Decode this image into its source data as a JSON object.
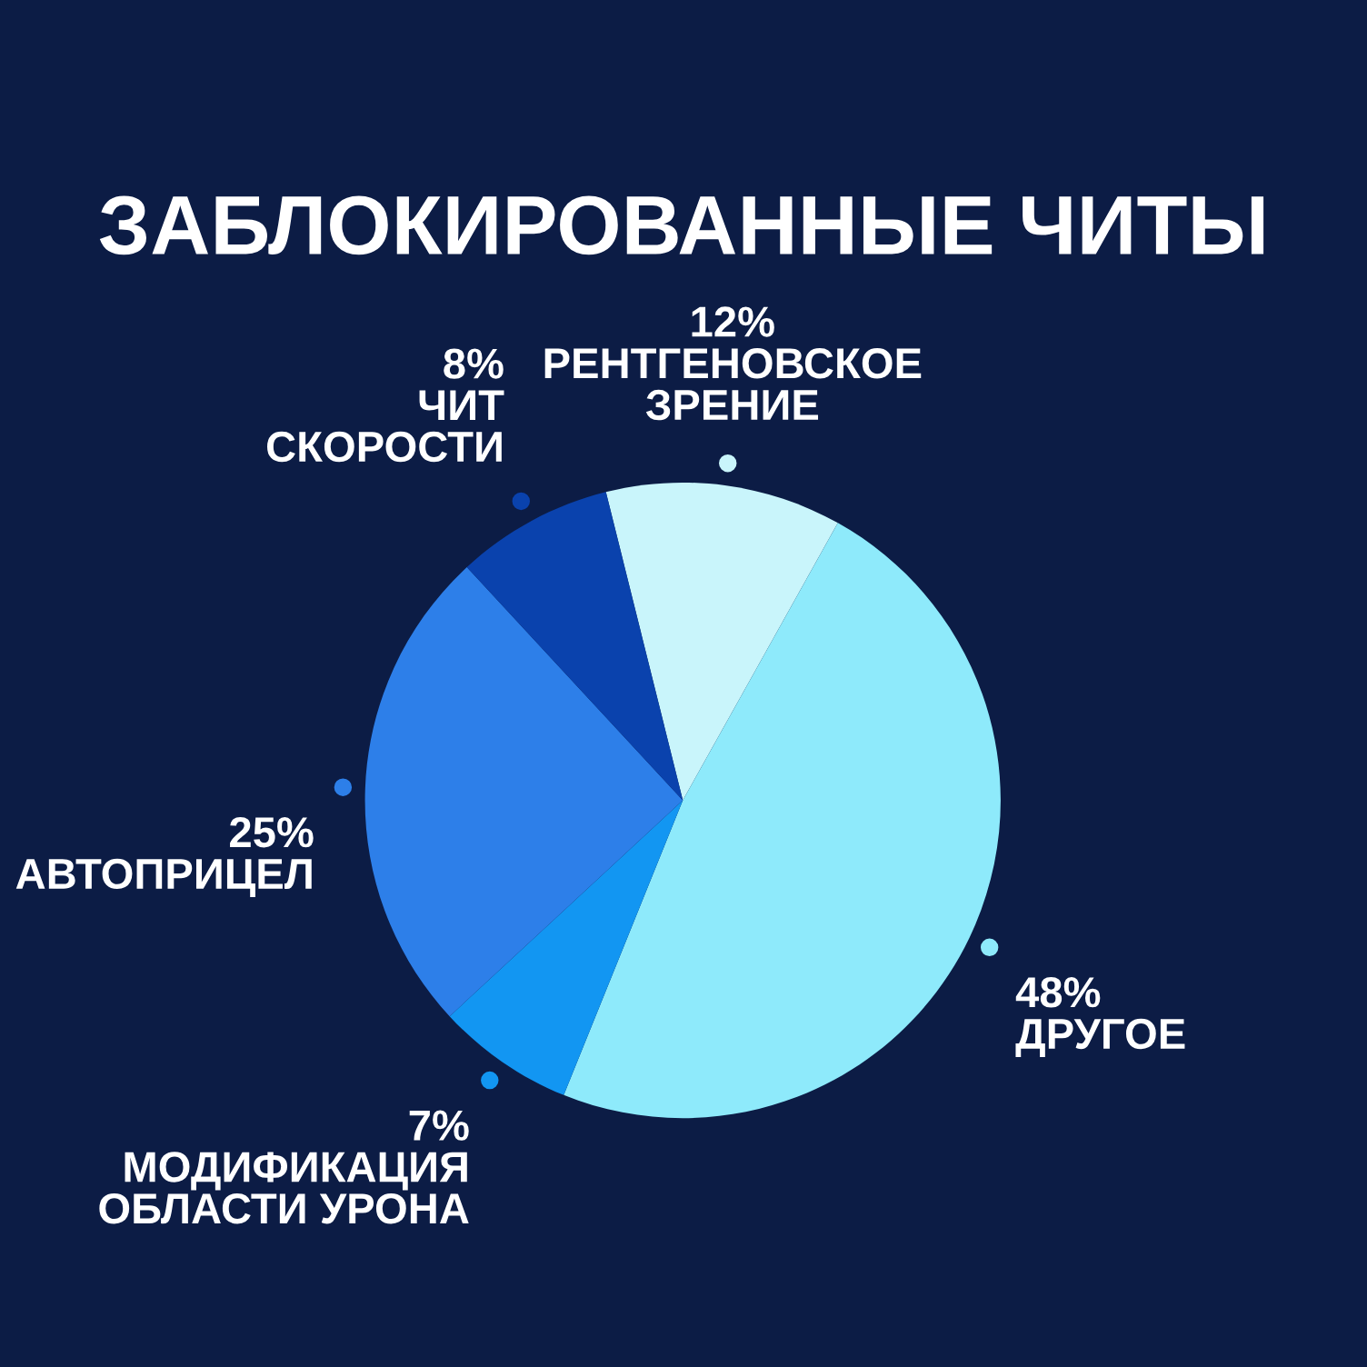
{
  "chart_data": {
    "type": "pie",
    "title": "ЗАБЛОКИРОВАННЫЕ ЧИТЫ",
    "categories": [
      "РЕНТГЕНОВСКОЕ\nЗРЕНИЕ",
      "ДРУГОЕ",
      "МОДИФИКАЦИЯ\nОБЛАСТИ УРОНА",
      "АВТОПРИЦЕЛ",
      "ЧИТ\nСКОРОСТИ"
    ],
    "values": [
      12,
      48,
      7,
      25,
      8
    ],
    "colors": [
      "#c9f5fb",
      "#8eeafb",
      "#1296f2",
      "#2d7fe9",
      "#0a42ad"
    ],
    "value_labels": [
      "12%",
      "48%",
      "7%",
      "25%",
      "8%"
    ]
  }
}
